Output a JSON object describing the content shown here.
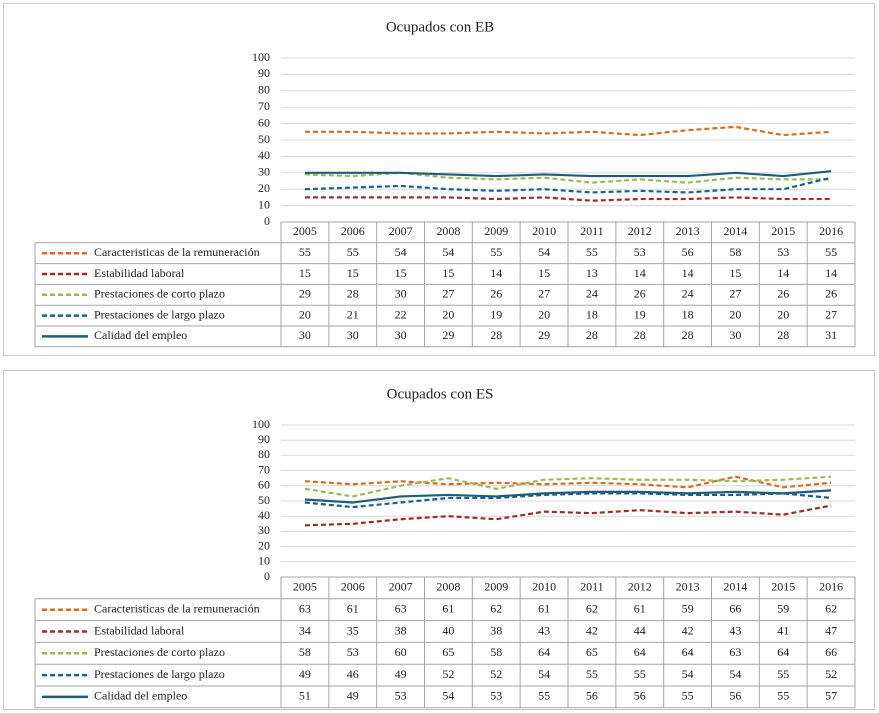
{
  "chart_data": [
    {
      "type": "line",
      "title": "Ocupados con EB",
      "categories": [
        "2005",
        "2006",
        "2007",
        "2008",
        "2009",
        "2010",
        "2011",
        "2012",
        "2013",
        "2014",
        "2015",
        "2016"
      ],
      "ylim": [
        0,
        100
      ],
      "yticks": [
        0,
        10,
        20,
        30,
        40,
        50,
        60,
        70,
        80,
        90,
        100
      ],
      "grid": true,
      "series": [
        {
          "name": "Caracteristicas de la remuneración",
          "color": "#dc6a1f",
          "dashed": true,
          "values": [
            55,
            55,
            54,
            54,
            55,
            54,
            55,
            53,
            56,
            58,
            53,
            55
          ]
        },
        {
          "name": "Estabilidad laboral",
          "color": "#a32a2a",
          "dashed": true,
          "values": [
            15,
            15,
            15,
            15,
            14,
            15,
            13,
            14,
            14,
            15,
            14,
            14
          ]
        },
        {
          "name": "Prestaciones de corto plazo",
          "color": "#9bbb59",
          "dashed": true,
          "values": [
            29,
            28,
            30,
            27,
            26,
            27,
            24,
            26,
            24,
            27,
            26,
            26
          ]
        },
        {
          "name": "Prestaciones de largo plazo",
          "color": "#1f5f8b",
          "dashed": true,
          "values": [
            20,
            21,
            22,
            20,
            19,
            20,
            18,
            19,
            18,
            20,
            20,
            27
          ]
        },
        {
          "name": "Calidad del empleo",
          "color": "#1e5e78",
          "dashed": false,
          "values": [
            30,
            30,
            30,
            29,
            28,
            29,
            28,
            28,
            28,
            30,
            28,
            31
          ]
        }
      ]
    },
    {
      "type": "line",
      "title": "Ocupados con ES",
      "categories": [
        "2005",
        "2006",
        "2007",
        "2008",
        "2009",
        "2010",
        "2011",
        "2012",
        "2013",
        "2014",
        "2015",
        "2016"
      ],
      "ylim": [
        0,
        100
      ],
      "yticks": [
        0,
        10,
        20,
        30,
        40,
        50,
        60,
        70,
        80,
        90,
        100
      ],
      "grid": true,
      "series": [
        {
          "name": "Caracteristicas de la remuneración",
          "color": "#dc6a1f",
          "dashed": true,
          "values": [
            63,
            61,
            63,
            61,
            62,
            61,
            62,
            61,
            59,
            66,
            59,
            62
          ]
        },
        {
          "name": "Estabilidad laboral",
          "color": "#a32a2a",
          "dashed": true,
          "values": [
            34,
            35,
            38,
            40,
            38,
            43,
            42,
            44,
            42,
            43,
            41,
            47
          ]
        },
        {
          "name": "Prestaciones de corto plazo",
          "color": "#9bbb59",
          "dashed": true,
          "values": [
            58,
            53,
            60,
            65,
            58,
            64,
            65,
            64,
            64,
            63,
            64,
            66
          ]
        },
        {
          "name": "Prestaciones de largo plazo",
          "color": "#1f5f8b",
          "dashed": true,
          "values": [
            49,
            46,
            49,
            52,
            52,
            54,
            55,
            55,
            54,
            54,
            55,
            52
          ]
        },
        {
          "name": "Calidad del empleo",
          "color": "#1e5e78",
          "dashed": false,
          "values": [
            51,
            49,
            53,
            54,
            53,
            55,
            56,
            56,
            55,
            56,
            55,
            57
          ]
        }
      ]
    }
  ]
}
